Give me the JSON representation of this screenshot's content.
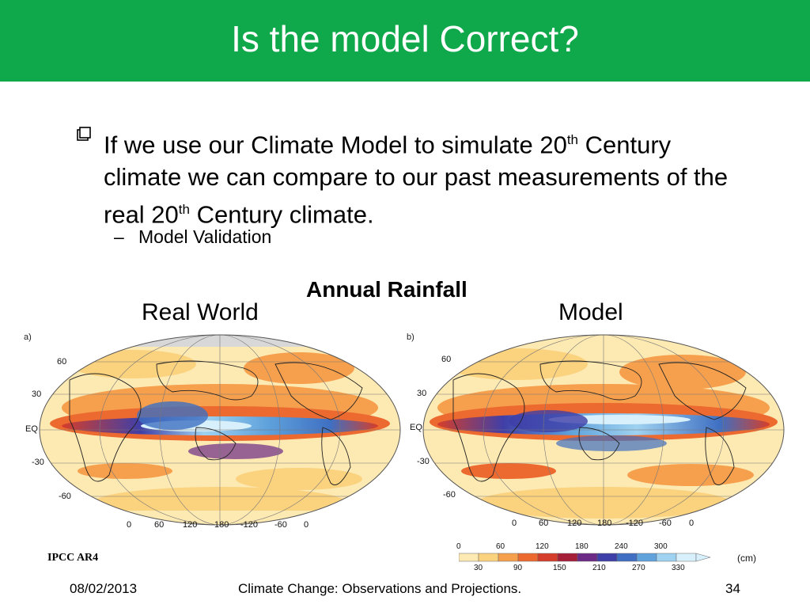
{
  "slide": {
    "title": "Is the model Correct?",
    "bullet": {
      "part1": "If we use our Climate Model to simulate 20",
      "sup1": "th",
      "part2": " Century climate we can compare to our past measurements of the real 20",
      "sup2": "th",
      "part3": " Century climate."
    },
    "sub_bullet": {
      "dash": "–",
      "text": "Model Validation"
    },
    "figure": {
      "title": "Annual Rainfall",
      "left_label": "Real World",
      "right_label": "Model",
      "panel_a": "a)",
      "panel_b": "b)",
      "lat_labels": [
        "60",
        "30",
        "EQ",
        "-30",
        "-60"
      ],
      "lon_labels": [
        "0",
        "60",
        "120",
        "180",
        "-120",
        "-60",
        "0"
      ],
      "colorbar": {
        "top_ticks": [
          "0",
          "60",
          "120",
          "180",
          "240",
          "300"
        ],
        "bottom_ticks": [
          "30",
          "90",
          "150",
          "210",
          "270",
          "330"
        ],
        "unit": "(cm)",
        "colors": [
          "#fde9b2",
          "#fbd27e",
          "#f6a04e",
          "#ec6a2f",
          "#d53e2a",
          "#a51f38",
          "#6a2a86",
          "#3f3fa8",
          "#3f6fc2",
          "#5fa2dc",
          "#9fd2f0",
          "#d8f0fb"
        ]
      }
    },
    "credit": "IPCC AR4",
    "footer": {
      "date": "08/02/2013",
      "center": "Climate Change: Observations and Projections.",
      "page": "34"
    }
  }
}
